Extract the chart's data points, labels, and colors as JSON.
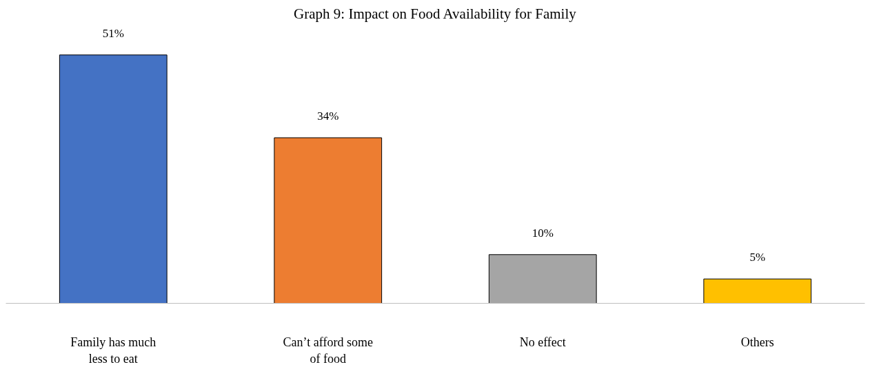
{
  "chart_data": {
    "type": "bar",
    "title": "Graph 9: Impact on Food Availability for Family",
    "categories": [
      "Family has much less to eat",
      "Can’t afford some of food",
      "No effect",
      "Others"
    ],
    "values": [
      51,
      34,
      10,
      5
    ],
    "colors": [
      "#4472c4",
      "#ed7d31",
      "#a5a5a5",
      "#ffc000"
    ],
    "value_labels": [
      "51%",
      "34%",
      "10%",
      "5%"
    ],
    "tick_labels": "x"
  }
}
